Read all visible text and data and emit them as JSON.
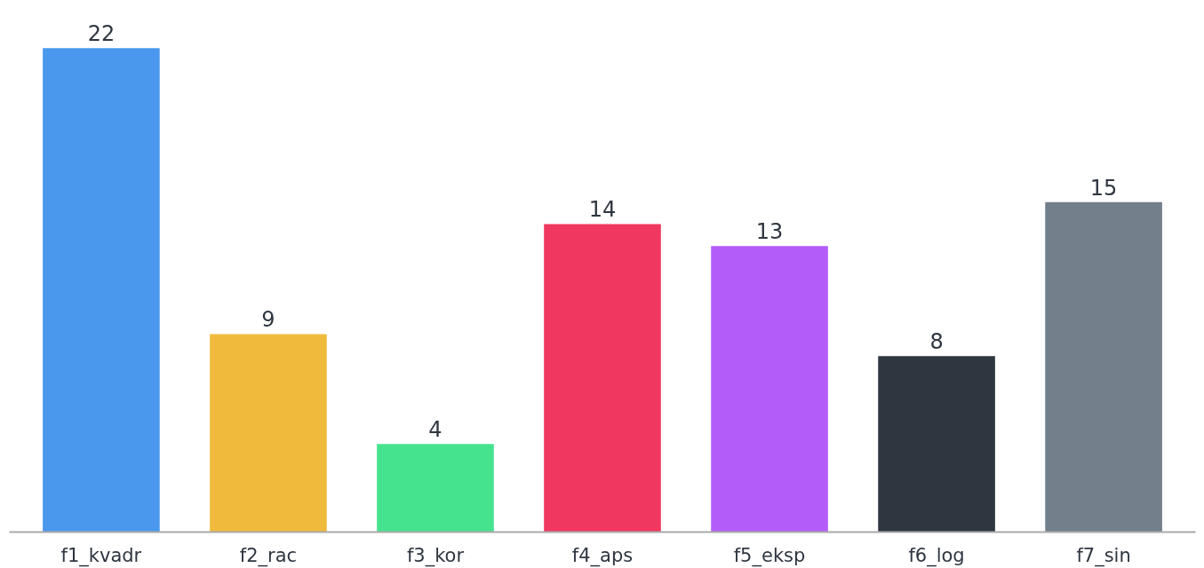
{
  "chart_data": {
    "type": "bar",
    "categories": [
      "f1_kvadr",
      "f2_rac",
      "f3_kor",
      "f4_aps",
      "f5_eksp",
      "f6_log",
      "f7_sin"
    ],
    "values": [
      22,
      9,
      4,
      14,
      13,
      8,
      15
    ],
    "colors": [
      "#4a98ee",
      "#f0bb3d",
      "#46e38f",
      "#f0375f",
      "#b45cf9",
      "#2f3640",
      "#737f8a"
    ],
    "data_labels": true,
    "grid": false
  }
}
